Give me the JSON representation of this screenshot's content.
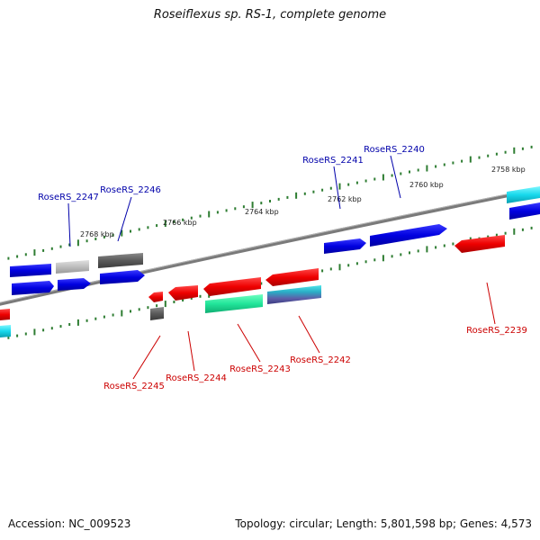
{
  "title": "Roseiflexus sp. RS-1, complete genome",
  "footer": {
    "accession": "Accession: NC_009523",
    "summary": "Topology: circular; Length: 5,801,598 bp; Genes: 4,573"
  },
  "colors": {
    "forward_label": "#0000aa",
    "reverse_label": "#cc0000",
    "backbone": "#888888",
    "tick": "#2e7d32"
  },
  "ticks": [
    {
      "label": "2768 kbp"
    },
    {
      "label": "2766 kbp"
    },
    {
      "label": "2764 kbp"
    },
    {
      "label": "2762 kbp"
    },
    {
      "label": "2760 kbp"
    },
    {
      "label": "2758 kbp"
    }
  ],
  "gene_labels": [
    {
      "name": "RoseRS_2247",
      "strand": "forward"
    },
    {
      "name": "RoseRS_2246",
      "strand": "forward"
    },
    {
      "name": "RoseRS_2241",
      "strand": "forward"
    },
    {
      "name": "RoseRS_2240",
      "strand": "forward"
    },
    {
      "name": "RoseRS_2245",
      "strand": "reverse"
    },
    {
      "name": "RoseRS_2244",
      "strand": "reverse"
    },
    {
      "name": "RoseRS_2243",
      "strand": "reverse"
    },
    {
      "name": "RoseRS_2242",
      "strand": "reverse"
    },
    {
      "name": "RoseRS_2239",
      "strand": "reverse"
    }
  ]
}
